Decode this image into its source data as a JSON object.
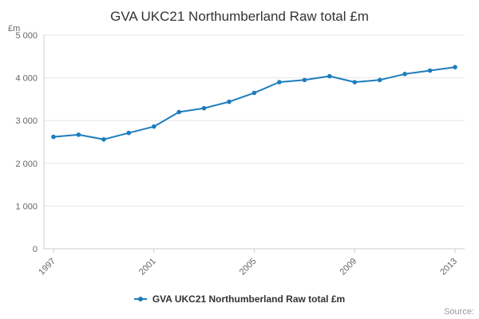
{
  "source_label": "Source:",
  "chart_data": {
    "type": "line",
    "title": "GVA UKC21 Northumberland Raw total £m",
    "y_axis_title": "£m",
    "xlabel": "",
    "ylabel": "£m",
    "x": [
      1997,
      1998,
      1999,
      2000,
      2001,
      2002,
      2003,
      2004,
      2005,
      2006,
      2007,
      2008,
      2009,
      2010,
      2011,
      2012,
      2013
    ],
    "series": [
      {
        "name": "GVA UKC21 Northumberland Raw total £m",
        "color": "#1d7dbc",
        "values": [
          2620,
          2670,
          2560,
          2710,
          2860,
          3200,
          3290,
          3440,
          3650,
          3900,
          3950,
          4040,
          3900,
          3950,
          4090,
          4170,
          4250
        ]
      }
    ],
    "ylim": [
      0,
      5000
    ],
    "y_ticks": [
      0,
      1000,
      2000,
      3000,
      4000,
      5000
    ],
    "y_tick_labels": [
      "0",
      "1 000",
      "2 000",
      "3 000",
      "4 000",
      "5 000"
    ],
    "x_tick_years": [
      1997,
      2001,
      2005,
      2009,
      2013
    ],
    "x_tick_labels": [
      "1997",
      "2001",
      "2005",
      "2009",
      "2013"
    ],
    "grid": true,
    "grid_color": "#e6e6e6",
    "axis_color": "#cccccc",
    "tick_label_color": "#666666",
    "legend_position": "bottom"
  }
}
